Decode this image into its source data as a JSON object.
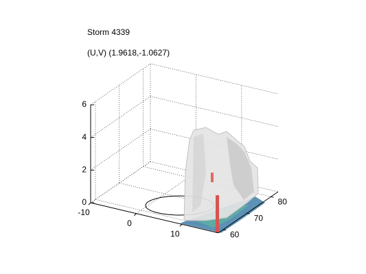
{
  "chart_data": {
    "type": "surface3d",
    "title": "Storm 4339",
    "subtitle": "(U,V) (1.9618,-1.0627)",
    "xlim": [
      -10,
      18
    ],
    "ylim": [
      58,
      83
    ],
    "zlim": [
      0,
      6
    ],
    "xticks": [
      -10,
      0,
      10
    ],
    "yticks": [
      60,
      70,
      80
    ],
    "zticks": [
      0,
      2,
      4,
      6
    ],
    "grid": true
  }
}
